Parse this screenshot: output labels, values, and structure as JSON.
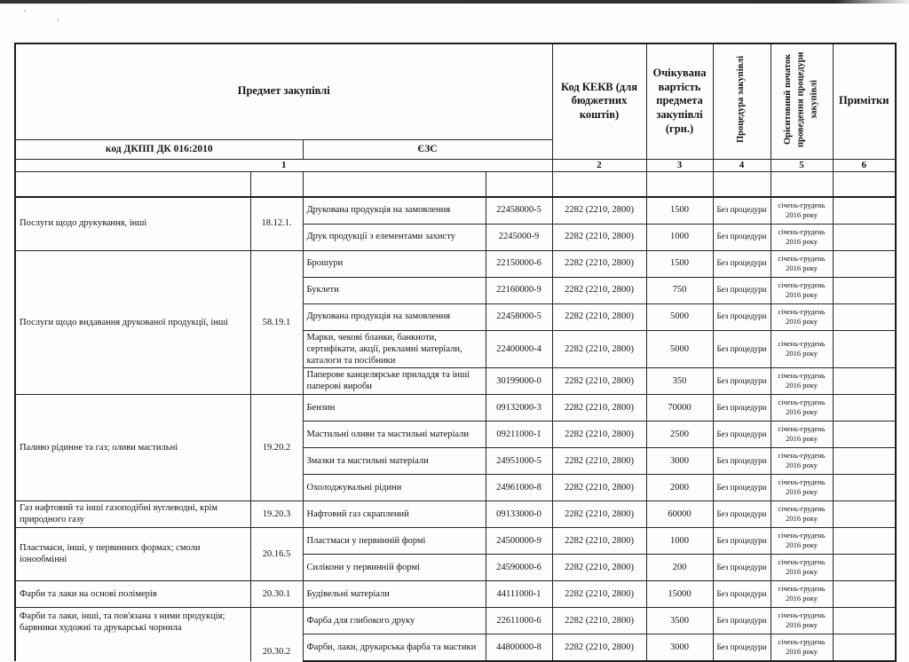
{
  "artifacts": {
    "scan_marks": [
      "'",
      ","
    ]
  },
  "table": {
    "header": {
      "subject_label": "Предмет закупівлі",
      "dkpp_label": "код ДКПП ДК 016:2010",
      "ezs_label": "ЄЗС",
      "kekv_label": "Код КЕКВ (для бюджетних коштів)",
      "expected_value_label": "Очікувана вартість предмета закупівлі (грн.)",
      "procedure_label": "Процедура закупівлі",
      "start_label": "Орієнтовний початок проведення процедури закупівлі",
      "notes_label": "Примітки",
      "column_numbers": [
        "1",
        "2",
        "3",
        "4",
        "5",
        "6"
      ]
    },
    "groups": [
      {
        "name": "Послуги щодо друкування, інші",
        "code": "18.12.1.",
        "rows": [
          {
            "desc": "Друкована продукція на замовлення",
            "cpv": "22458000-5",
            "kekv": "2282 (2210, 2800)",
            "value": "1500",
            "procedure": "Без процедури",
            "start": "січень-грудень 2016 року",
            "note": ""
          },
          {
            "desc": "Друк продукції з елементами захисту",
            "cpv": "2245000-9",
            "kekv": "2282 (2210, 2800)",
            "value": "1000",
            "procedure": "Без процедури",
            "start": "січень-грудень 2016 року",
            "note": ""
          }
        ]
      },
      {
        "name": "Послуги щодо видавання друкованої продукції, інші",
        "code": "58.19.1",
        "rows": [
          {
            "desc": "Брошури",
            "cpv": "22150000-6",
            "kekv": "2282 (2210, 2800)",
            "value": "1500",
            "procedure": "Без процедури",
            "start": "січень-грудень 2016 року",
            "note": ""
          },
          {
            "desc": "Буклети",
            "cpv": "22160000-9",
            "kekv": "2282 (2210, 2800)",
            "value": "750",
            "procedure": "Без процедури",
            "start": "січень-грудень 2016 року",
            "note": ""
          },
          {
            "desc": "Друкована продукція на замовлення",
            "cpv": "22458000-5",
            "kekv": "2282 (2210, 2800)",
            "value": "5000",
            "procedure": "Без процедури",
            "start": "січень-грудень 2016 року",
            "note": ""
          },
          {
            "desc": "Марки, чекові бланки, банкноти, сертифікати, акції, рекламні матеріали, каталоги та посібники",
            "cpv": "22400000-4",
            "kekv": "2282 (2210, 2800)",
            "value": "5000",
            "procedure": "Без процедури",
            "start": "січень-грудень 2016 року",
            "note": ""
          },
          {
            "desc": "Паперове канцелярське приладдя та інші паперові вироби",
            "cpv": "30199000-0",
            "kekv": "2282 (2210, 2800)",
            "value": "350",
            "procedure": "Без процедури",
            "start": "січень-грудень 2016 року",
            "note": ""
          }
        ]
      },
      {
        "name": "Паливо рідинне та газ; оливи мастильні",
        "code": "19.20.2",
        "rows": [
          {
            "desc": "Бензин",
            "cpv": "09132000-3",
            "kekv": "2282 (2210, 2800)",
            "value": "70000",
            "procedure": "Без процедури",
            "start": "січень-грудень 2016 року",
            "note": ""
          },
          {
            "desc": "Мастильні оливи та мастильні матеріали",
            "cpv": "09211000-1",
            "kekv": "2282 (2210, 2800)",
            "value": "2500",
            "procedure": "Без процедури",
            "start": "січень-грудень 2016 року",
            "note": ""
          },
          {
            "desc": "Змазки та мастильні матеріали",
            "cpv": "24951000-5",
            "kekv": "2282 (2210, 2800)",
            "value": "3000",
            "procedure": "Без процедури",
            "start": "січень-грудень 2016 року",
            "note": ""
          },
          {
            "desc": "Охолоджувальні рідини",
            "cpv": "24961000-8",
            "kekv": "2282 (2210, 2800)",
            "value": "2000",
            "procedure": "Без процедури",
            "start": "січень-грудень 2016 року",
            "note": ""
          }
        ]
      },
      {
        "name": "Газ нафтовий та інші газоподібні вуглеводні, крім природного газу",
        "code": "19.20.3",
        "rows": [
          {
            "desc": "Нафтовий газ скраплений",
            "cpv": "09133000-0",
            "kekv": "2282 (2210, 2800)",
            "value": "60000",
            "procedure": "Без процедури",
            "start": "січень-грудень 2016 року",
            "note": ""
          }
        ]
      },
      {
        "name": "Пластмаси, інші, у первинних формах; смоли іонообмінні",
        "code": "20.16.5",
        "rows": [
          {
            "desc": "Пластмаси у первинній формі",
            "cpv": "24500000-9",
            "kekv": "2282 (2210, 2800)",
            "value": "1000",
            "procedure": "Без процедури",
            "start": "січень-грудень 2016 року",
            "note": ""
          },
          {
            "desc": "Силікони у первинній формі",
            "cpv": "24590000-6",
            "kekv": "2282 (2210, 2800)",
            "value": "200",
            "procedure": "Без процедури",
            "start": "січень-грудень 2016 року",
            "note": ""
          }
        ]
      },
      {
        "name": "Фарби та лаки на основі полімерів",
        "code": "20.30.1",
        "rows": [
          {
            "desc": "Будівельні матеріали",
            "cpv": "44111000-1",
            "kekv": "2282 (2210, 2800)",
            "value": "15000",
            "procedure": "Без процедури",
            "start": "січень-грудень 2016 року",
            "note": ""
          }
        ]
      },
      {
        "name": "Фарби та лаки, інші, та пов'язана з ними продукція; барвники художні та друкарські чорнила",
        "code": "20.30.2",
        "rows": [
          {
            "desc": "Фарба для глибокого друку",
            "cpv": "22611000-6",
            "kekv": "2282 (2210, 2800)",
            "value": "3500",
            "procedure": "Без процедури",
            "start": "січень-грудень 2016 року",
            "note": ""
          },
          {
            "desc": "Фарби, лаки, друкарська фарба та мастики",
            "cpv": "44800000-8",
            "kekv": "2282 (2210, 2800)",
            "value": "3000",
            "procedure": "Без процедури",
            "start": "січень-грудень 2016 року",
            "note": ""
          }
        ]
      }
    ]
  }
}
